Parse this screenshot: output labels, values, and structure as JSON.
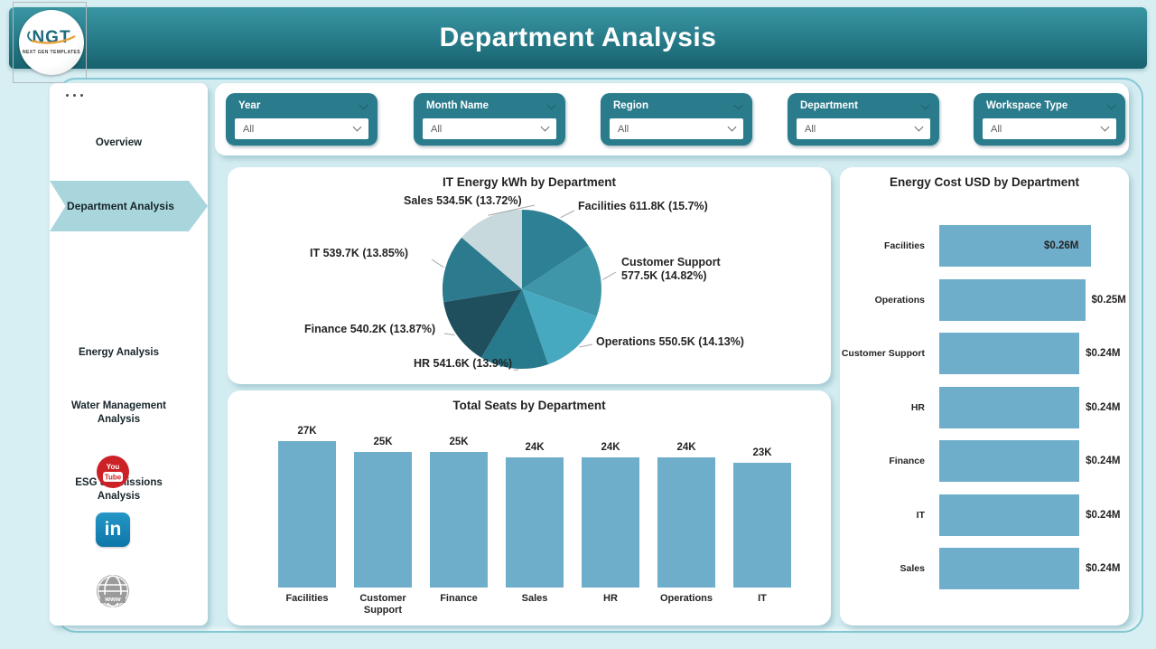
{
  "header": {
    "title": "Department Analysis"
  },
  "logo": {
    "text": "NGT",
    "subtext": "NEXT GEN TEMPLATES"
  },
  "sidebar": {
    "items": [
      {
        "label": "Overview",
        "active": false
      },
      {
        "label": "Department Analysis",
        "active": true
      },
      {
        "label": "Energy Analysis",
        "active": false
      },
      {
        "label": "Water Management Analysis",
        "active": false
      },
      {
        "label": "ESG & Emissions Analysis",
        "active": false
      }
    ],
    "social": {
      "youtube": "YouTube",
      "linkedin": "in",
      "website": "www"
    }
  },
  "filters": {
    "items": [
      {
        "label": "Year",
        "value": "All"
      },
      {
        "label": "Month Name",
        "value": "All"
      },
      {
        "label": "Region",
        "value": "All"
      },
      {
        "label": "Department",
        "value": "All"
      },
      {
        "label": "Workspace Type",
        "value": "All"
      }
    ]
  },
  "chart_data": [
    {
      "type": "pie",
      "title": "IT Energy kWh by Department",
      "unit": "kWh",
      "series": [
        {
          "name": "Facilities",
          "value": 611800,
          "display": "611.8K",
          "pct": "15.7%"
        },
        {
          "name": "Customer Support",
          "value": 577500,
          "display": "577.5K",
          "pct": "14.82%"
        },
        {
          "name": "Operations",
          "value": 550500,
          "display": "550.5K",
          "pct": "14.13%"
        },
        {
          "name": "HR",
          "value": 541600,
          "display": "541.6K",
          "pct": "13.9%"
        },
        {
          "name": "Finance",
          "value": 540200,
          "display": "540.2K",
          "pct": "13.87%"
        },
        {
          "name": "IT",
          "value": 539700,
          "display": "539.7K",
          "pct": "13.85%"
        },
        {
          "name": "Sales",
          "value": 534500,
          "display": "534.5K",
          "pct": "13.72%"
        }
      ],
      "colors": [
        "#2E8194",
        "#3F96A9",
        "#47A9BF",
        "#27798C",
        "#1F4E5C",
        "#2C7A8D",
        "#C7D9DD"
      ]
    },
    {
      "type": "bar",
      "title": "Total Seats by Department",
      "categories": [
        "Facilities",
        "Customer Support",
        "Finance",
        "Sales",
        "HR",
        "Operations",
        "IT"
      ],
      "values": [
        27000,
        25000,
        25000,
        24000,
        24000,
        24000,
        23000
      ],
      "labels": [
        "27K",
        "25K",
        "25K",
        "24K",
        "24K",
        "24K",
        "23K"
      ],
      "bar_color": "#6FAECB",
      "ylim": [
        0,
        27000
      ]
    },
    {
      "type": "bar-horizontal",
      "title": "Energy Cost USD by Department",
      "categories": [
        "Facilities",
        "Operations",
        "Customer Support",
        "HR",
        "Finance",
        "IT",
        "Sales"
      ],
      "values": [
        0.26,
        0.25,
        0.24,
        0.24,
        0.24,
        0.24,
        0.24
      ],
      "labels": [
        "$0.26M",
        "$0.25M",
        "$0.24M",
        "$0.24M",
        "$0.24M",
        "$0.24M",
        "$0.24M"
      ],
      "bar_color": "#6FAECB",
      "xlim": [
        0,
        0.26
      ]
    }
  ]
}
